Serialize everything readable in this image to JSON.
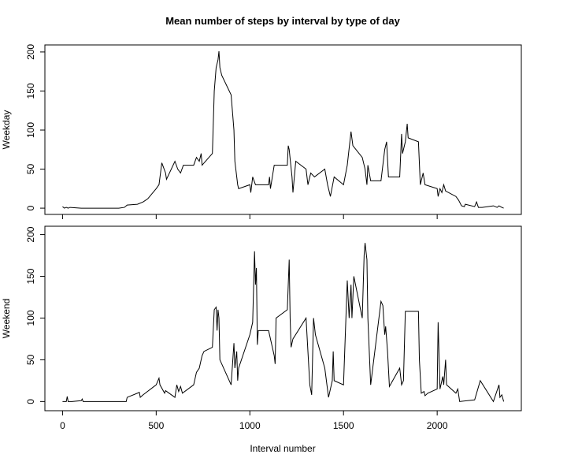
{
  "chart_data": [
    {
      "type": "line",
      "title": "Mean number of steps by interval by type of day",
      "ylabel": "Weekday",
      "color": "#000000",
      "xlim": [
        -94.2,
        2449.2
      ],
      "ylim": [
        -8,
        209
      ],
      "yticks": [
        0,
        50,
        100,
        150,
        200
      ],
      "x": [
        0,
        10,
        20,
        30,
        40,
        100,
        200,
        300,
        330,
        345,
        400,
        430,
        455,
        500,
        515,
        530,
        550,
        555,
        600,
        615,
        630,
        645,
        700,
        715,
        730,
        740,
        745,
        800,
        810,
        820,
        830,
        835,
        840,
        845,
        850,
        900,
        915,
        920,
        930,
        935,
        940,
        1000,
        1005,
        1015,
        1030,
        1100,
        1105,
        1110,
        1130,
        1200,
        1205,
        1210,
        1225,
        1230,
        1245,
        1300,
        1310,
        1325,
        1345,
        1400,
        1415,
        1430,
        1450,
        1500,
        1520,
        1540,
        1550,
        1600,
        1615,
        1625,
        1630,
        1645,
        1700,
        1710,
        1720,
        1730,
        1740,
        1800,
        1810,
        1815,
        1830,
        1840,
        1845,
        1900,
        1910,
        1925,
        1935,
        2000,
        2005,
        2015,
        2025,
        2035,
        2045,
        2100,
        2115,
        2130,
        2145,
        2150,
        2200,
        2210,
        2220,
        2240,
        2300,
        2320,
        2330,
        2345,
        2355
      ],
      "values": [
        2,
        0,
        1,
        0,
        1,
        0,
        0,
        0,
        1,
        4,
        5,
        8,
        12,
        25,
        30,
        58,
        45,
        37,
        60,
        50,
        45,
        55,
        55,
        65,
        60,
        70,
        55,
        70,
        150,
        180,
        190,
        201,
        180,
        175,
        170,
        145,
        100,
        60,
        40,
        30,
        25,
        30,
        20,
        40,
        30,
        30,
        40,
        25,
        55,
        55,
        80,
        75,
        40,
        20,
        60,
        50,
        30,
        45,
        40,
        50,
        30,
        15,
        40,
        30,
        55,
        98,
        80,
        65,
        50,
        30,
        55,
        35,
        35,
        55,
        75,
        85,
        40,
        40,
        95,
        70,
        85,
        108,
        90,
        85,
        30,
        45,
        30,
        25,
        15,
        25,
        20,
        30,
        22,
        15,
        10,
        3,
        2,
        5,
        2,
        8,
        1,
        1,
        3,
        1,
        3,
        1,
        0
      ]
    },
    {
      "type": "line",
      "ylabel": "Weekend",
      "xlabel": "Interval number",
      "color": "#000000",
      "xlim": [
        -94.2,
        2449.2
      ],
      "ylim": [
        -11,
        210
      ],
      "yticks": [
        0,
        50,
        100,
        150,
        200
      ],
      "xticks": [
        0,
        500,
        1000,
        1500,
        2000
      ],
      "x": [
        0,
        20,
        25,
        30,
        50,
        100,
        105,
        110,
        200,
        300,
        340,
        345,
        400,
        410,
        415,
        430,
        500,
        515,
        520,
        545,
        550,
        600,
        610,
        620,
        630,
        640,
        700,
        715,
        730,
        745,
        755,
        800,
        810,
        820,
        825,
        830,
        835,
        840,
        900,
        915,
        920,
        930,
        935,
        940,
        1000,
        1015,
        1025,
        1030,
        1035,
        1040,
        1045,
        1100,
        1115,
        1130,
        1135,
        1140,
        1200,
        1210,
        1215,
        1220,
        1230,
        1300,
        1310,
        1320,
        1330,
        1340,
        1350,
        1400,
        1420,
        1440,
        1445,
        1450,
        1500,
        1520,
        1530,
        1540,
        1545,
        1555,
        1600,
        1610,
        1615,
        1625,
        1630,
        1645,
        1700,
        1710,
        1720,
        1725,
        1735,
        1745,
        1800,
        1810,
        1820,
        1830,
        1900,
        1905,
        1915,
        1930,
        1935,
        1950,
        2000,
        2005,
        2015,
        2030,
        2035,
        2045,
        2050,
        2100,
        2110,
        2120,
        2200,
        2230,
        2300,
        2330,
        2335,
        2345,
        2355
      ],
      "values": [
        0,
        0,
        6,
        0,
        0,
        1,
        3,
        0,
        0,
        0,
        0,
        5,
        10,
        11,
        5,
        8,
        20,
        28,
        20,
        10,
        13,
        5,
        20,
        12,
        18,
        10,
        20,
        35,
        40,
        55,
        60,
        65,
        110,
        113,
        85,
        110,
        100,
        50,
        20,
        70,
        40,
        60,
        25,
        40,
        80,
        95,
        180,
        140,
        160,
        68,
        85,
        85,
        70,
        55,
        45,
        100,
        110,
        170,
        100,
        65,
        75,
        100,
        60,
        20,
        8,
        100,
        80,
        40,
        5,
        25,
        60,
        25,
        20,
        145,
        100,
        140,
        100,
        150,
        100,
        175,
        190,
        170,
        100,
        20,
        120,
        115,
        80,
        90,
        60,
        18,
        40,
        20,
        25,
        108,
        108,
        50,
        10,
        12,
        7,
        10,
        15,
        95,
        15,
        30,
        20,
        50,
        20,
        10,
        15,
        0,
        2,
        25,
        0,
        20,
        5,
        8,
        0
      ]
    }
  ]
}
